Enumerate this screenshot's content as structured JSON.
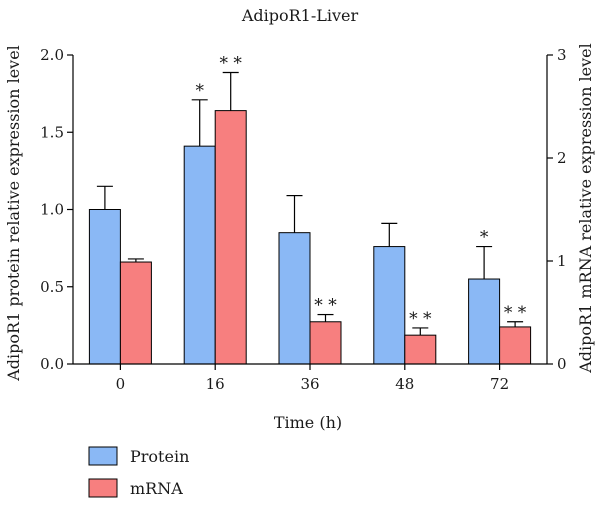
{
  "chart_data": {
    "type": "bar",
    "title": "AdipoR1-Liver",
    "xlabel": "Time (h)",
    "ylabel_left": "AdipoR1 protein relative expression level",
    "ylabel_right": "AdipoR1 mRNA relative expression level",
    "categories": [
      "0",
      "16",
      "36",
      "48",
      "72"
    ],
    "ylim_left": [
      0,
      2.0
    ],
    "yticks_left": [
      "0.0",
      "0.5",
      "1.0",
      "1.5",
      "2.0"
    ],
    "ylim_right": [
      0,
      3
    ],
    "yticks_right": [
      "0",
      "1",
      "2",
      "3"
    ],
    "legend_position": "bottom-left",
    "grid": false,
    "series": [
      {
        "name": "Protein",
        "axis": "left",
        "color": "#8ab8f5",
        "values": [
          1.0,
          1.41,
          0.85,
          0.76,
          0.55
        ],
        "errors": [
          0.15,
          0.3,
          0.24,
          0.15,
          0.21
        ],
        "significance": [
          "",
          "*",
          "",
          "",
          "*"
        ]
      },
      {
        "name": "mRNA",
        "axis": "right",
        "color": "#f77f7f",
        "values": [
          0.99,
          2.46,
          0.41,
          0.28,
          0.36
        ],
        "errors": [
          0.03,
          0.37,
          0.07,
          0.07,
          0.05
        ],
        "significance": [
          "",
          "**",
          "**",
          "**",
          "**"
        ]
      }
    ]
  }
}
